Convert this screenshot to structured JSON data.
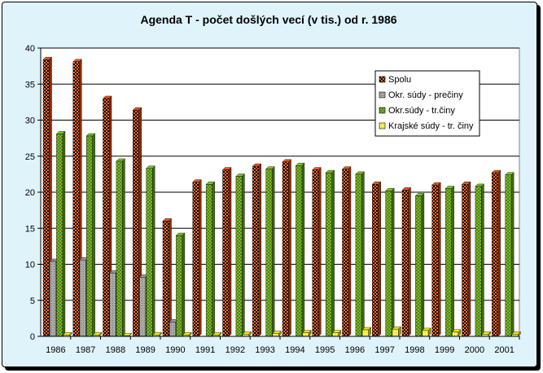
{
  "chart_data": {
    "type": "bar",
    "title": "Agenda T - počet došlých vecí (v tis.) od r. 1986",
    "xlabel": "",
    "ylabel": "",
    "ylim": [
      0,
      40
    ],
    "yticks": [
      0,
      5,
      10,
      15,
      20,
      25,
      30,
      35,
      40
    ],
    "grid": true,
    "legend_position": "right",
    "categories": [
      "1986",
      "1987",
      "1988",
      "1989",
      "1990",
      "1991",
      "1992",
      "1993",
      "1994",
      "1995",
      "1996",
      "1997",
      "1998",
      "1999",
      "2000",
      "2001"
    ],
    "series": [
      {
        "name": "Spolu",
        "color": "#e8541c",
        "values": [
          38.4,
          38.1,
          33.0,
          31.4,
          16.0,
          21.4,
          23.1,
          23.6,
          24.2,
          23.1,
          23.2,
          21.1,
          20.3,
          21.0,
          21.1,
          22.7
        ]
      },
      {
        "name": "Okr. súdy - prečiny",
        "color": "#9a9a9a",
        "values": [
          10.4,
          10.6,
          8.8,
          8.2,
          2.0,
          0,
          0,
          0,
          0,
          0,
          0,
          0,
          0,
          0,
          0,
          0
        ]
      },
      {
        "name": "Okr.súdy - tr.činy",
        "color": "#7ec42a",
        "values": [
          28.1,
          27.8,
          24.3,
          23.3,
          14.0,
          21.1,
          22.2,
          23.2,
          23.7,
          22.7,
          22.5,
          20.2,
          19.5,
          20.5,
          20.8,
          22.4
        ]
      },
      {
        "name": "Krajské súdy - tr. činy",
        "color": "#f2e91a",
        "values": [
          0.2,
          0.2,
          0.1,
          0.2,
          0.2,
          0.2,
          0.3,
          0.4,
          0.5,
          0.5,
          0.9,
          1.0,
          0.8,
          0.6,
          0.3,
          0.3
        ]
      }
    ]
  }
}
